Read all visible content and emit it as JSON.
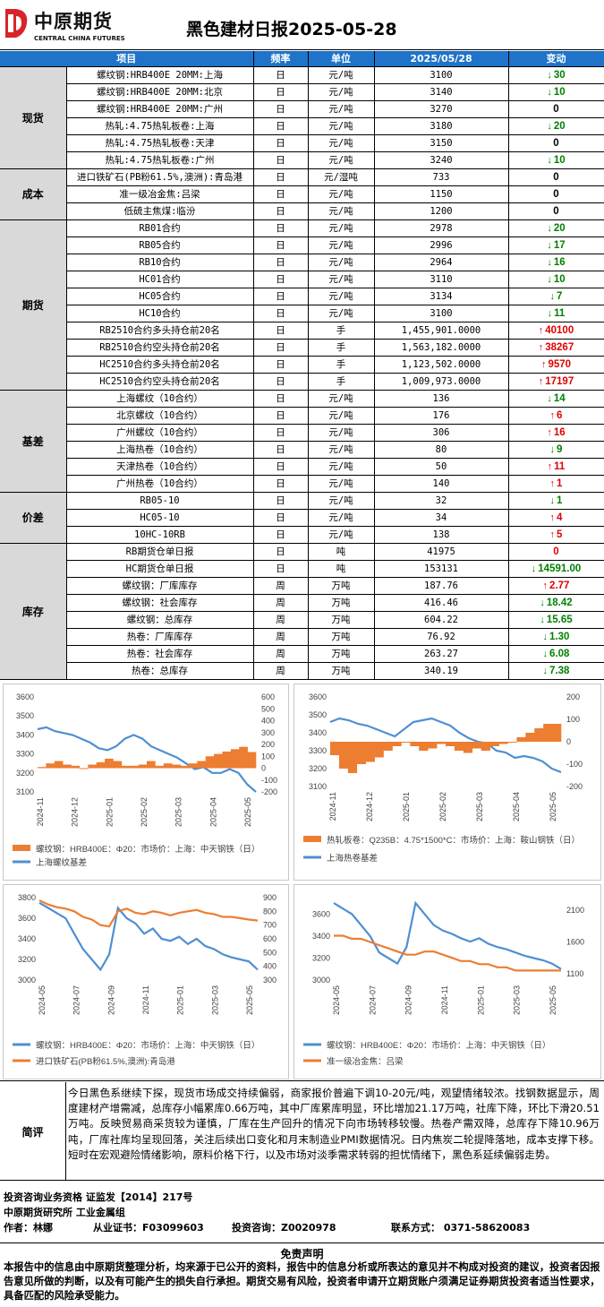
{
  "header": {
    "logo_cn": "中原期货",
    "logo_en": "CENTRAL CHINA FUTURES",
    "title": "黑色建材日报2025-05-28"
  },
  "columns": [
    "项目",
    "频率",
    "单位",
    "2025/05/28",
    "变动"
  ],
  "colors": {
    "header_bg": "#1f73c8",
    "cat_bg": "#d9d9d9",
    "up": "#e00000",
    "down": "#008000",
    "blue_line": "#4f8fd1",
    "orange": "#ed7d31"
  },
  "sections": [
    {
      "category": "现货",
      "rows": [
        {
          "item": "螺纹钢:HRB400E 20MM:上海",
          "freq": "日",
          "unit": "元/吨",
          "value": "3100",
          "dir": "down",
          "change": "30"
        },
        {
          "item": "螺纹钢:HRB400E 20MM:北京",
          "freq": "日",
          "unit": "元/吨",
          "value": "3140",
          "dir": "down",
          "change": "10"
        },
        {
          "item": "螺纹钢:HRB400E 20MM:广州",
          "freq": "日",
          "unit": "元/吨",
          "value": "3270",
          "dir": "none",
          "change": "0"
        },
        {
          "item": "热轧:4.75热轧板卷:上海",
          "freq": "日",
          "unit": "元/吨",
          "value": "3180",
          "dir": "down",
          "change": "20"
        },
        {
          "item": "热轧:4.75热轧板卷:天津",
          "freq": "日",
          "unit": "元/吨",
          "value": "3150",
          "dir": "none",
          "change": "0"
        },
        {
          "item": "热轧:4.75热轧板卷:广州",
          "freq": "日",
          "unit": "元/吨",
          "value": "3240",
          "dir": "down",
          "change": "10"
        }
      ]
    },
    {
      "category": "成本",
      "rows": [
        {
          "item": "进口铁矿石(PB粉61.5%,澳洲):青岛港",
          "freq": "日",
          "unit": "元/湿吨",
          "value": "733",
          "dir": "none",
          "change": "0"
        },
        {
          "item": "准一级冶金焦:吕梁",
          "freq": "日",
          "unit": "元/吨",
          "value": "1150",
          "dir": "none",
          "change": "0"
        },
        {
          "item": "低硫主焦煤:临汾",
          "freq": "日",
          "unit": "元/吨",
          "value": "1200",
          "dir": "none",
          "change": "0"
        }
      ]
    },
    {
      "category": "期货",
      "rows": [
        {
          "item": "RB01合约",
          "freq": "日",
          "unit": "元/吨",
          "value": "2978",
          "dir": "down",
          "change": "20"
        },
        {
          "item": "RB05合约",
          "freq": "日",
          "unit": "元/吨",
          "value": "2996",
          "dir": "down",
          "change": "17"
        },
        {
          "item": "RB10合约",
          "freq": "日",
          "unit": "元/吨",
          "value": "2964",
          "dir": "down",
          "change": "16"
        },
        {
          "item": "HC01合约",
          "freq": "日",
          "unit": "元/吨",
          "value": "3110",
          "dir": "down",
          "change": "10"
        },
        {
          "item": "HC05合约",
          "freq": "日",
          "unit": "元/吨",
          "value": "3134",
          "dir": "down",
          "change": "7"
        },
        {
          "item": "HC10合约",
          "freq": "日",
          "unit": "元/吨",
          "value": "3100",
          "dir": "down",
          "change": "11"
        },
        {
          "item": "RB2510合约多头持仓前20名",
          "freq": "日",
          "unit": "手",
          "value": "1,455,901.0000",
          "dir": "up",
          "change": "40100"
        },
        {
          "item": "RB2510合约空头持仓前20名",
          "freq": "日",
          "unit": "手",
          "value": "1,563,182.0000",
          "dir": "up",
          "change": "38267"
        },
        {
          "item": "HC2510合约多头持仓前20名",
          "freq": "日",
          "unit": "手",
          "value": "1,123,502.0000",
          "dir": "up",
          "change": "9570"
        },
        {
          "item": "HC2510合约空头持仓前20名",
          "freq": "日",
          "unit": "手",
          "value": "1,009,973.0000",
          "dir": "up",
          "change": "17197"
        }
      ]
    },
    {
      "category": "基差",
      "rows": [
        {
          "item": "上海螺纹（10合约）",
          "freq": "日",
          "unit": "元/吨",
          "value": "136",
          "dir": "down",
          "change": "14"
        },
        {
          "item": "北京螺纹（10合约）",
          "freq": "日",
          "unit": "元/吨",
          "value": "176",
          "dir": "up",
          "change": "6"
        },
        {
          "item": "广州螺纹（10合约）",
          "freq": "日",
          "unit": "元/吨",
          "value": "306",
          "dir": "up",
          "change": "16"
        },
        {
          "item": "上海热卷（10合约）",
          "freq": "日",
          "unit": "元/吨",
          "value": "80",
          "dir": "down",
          "change": "9"
        },
        {
          "item": "天津热卷（10合约）",
          "freq": "日",
          "unit": "元/吨",
          "value": "50",
          "dir": "up",
          "change": "11"
        },
        {
          "item": "广州热卷（10合约）",
          "freq": "日",
          "unit": "元/吨",
          "value": "140",
          "dir": "up",
          "change": "1"
        }
      ]
    },
    {
      "category": "价差",
      "rows": [
        {
          "item": "RB05-10",
          "freq": "日",
          "unit": "元/吨",
          "value": "32",
          "dir": "down",
          "change": "1"
        },
        {
          "item": "HC05-10",
          "freq": "日",
          "unit": "元/吨",
          "value": "34",
          "dir": "up",
          "change": "4"
        },
        {
          "item": "10HC-10RB",
          "freq": "日",
          "unit": "元/吨",
          "value": "138",
          "dir": "up",
          "change": "5"
        }
      ]
    },
    {
      "category": "库存",
      "rows": [
        {
          "item": "RB期货仓单日报",
          "freq": "日",
          "unit": "吨",
          "value": "41975",
          "dir": "none_red",
          "change": "0"
        },
        {
          "item": "HC期货仓单日报",
          "freq": "日",
          "unit": "吨",
          "value": "153131",
          "dir": "down",
          "change": "14591.00"
        },
        {
          "item": "螺纹钢：厂库库存",
          "freq": "周",
          "unit": "万吨",
          "value": "187.76",
          "dir": "up",
          "change": "2.77"
        },
        {
          "item": "螺纹钢：社会库存",
          "freq": "周",
          "unit": "万吨",
          "value": "416.46",
          "dir": "down",
          "change": "18.42"
        },
        {
          "item": "螺纹钢：总库存",
          "freq": "周",
          "unit": "万吨",
          "value": "604.22",
          "dir": "down",
          "change": "15.65"
        },
        {
          "item": "热卷：厂库库存",
          "freq": "周",
          "unit": "万吨",
          "value": "76.92",
          "dir": "down",
          "change": "1.30"
        },
        {
          "item": "热卷：社会库存",
          "freq": "周",
          "unit": "万吨",
          "value": "263.27",
          "dir": "down",
          "change": "6.08"
        },
        {
          "item": "热卷：总库存",
          "freq": "周",
          "unit": "万吨",
          "value": "340.19",
          "dir": "down",
          "change": "7.38"
        }
      ]
    }
  ],
  "chart_data": [
    {
      "type": "line",
      "left_ticks": [
        "3600",
        "3500",
        "3400",
        "3300",
        "3200",
        "3100"
      ],
      "right_ticks": [
        "600",
        "500",
        "400",
        "300",
        "200",
        "100",
        "0",
        "-100",
        "-200"
      ],
      "x_ticks": [
        "2024-11",
        "2024-12",
        "2025-01",
        "2025-02",
        "2025-03",
        "2025-04",
        "2025-05"
      ],
      "ylim": [
        3100,
        3600
      ],
      "y2lim": [
        -200,
        600
      ],
      "series": [
        {
          "name": "螺纹钢：HRB400E：Φ20：市场价：上海：中天钢铁（日）",
          "kind": "line",
          "axis": "left",
          "values": [
            3430,
            3440,
            3420,
            3410,
            3400,
            3380,
            3360,
            3330,
            3320,
            3340,
            3380,
            3400,
            3380,
            3340,
            3320,
            3300,
            3280,
            3250,
            3220,
            3230,
            3200,
            3200,
            3220,
            3200,
            3140,
            3100
          ]
        },
        {
          "name": "上海螺纹基差",
          "kind": "bar",
          "axis": "right",
          "values": [
            10,
            40,
            60,
            30,
            20,
            0,
            30,
            50,
            80,
            60,
            20,
            20,
            30,
            60,
            20,
            40,
            30,
            20,
            40,
            60,
            100,
            120,
            140,
            160,
            180,
            136
          ]
        }
      ]
    },
    {
      "type": "line",
      "left_ticks": [
        "3600",
        "3500",
        "3400",
        "3300",
        "3200",
        "3100"
      ],
      "right_ticks": [
        "200",
        "100",
        "0",
        "-100",
        "-200"
      ],
      "x_ticks": [
        "2024-11",
        "2024-12",
        "2025-01",
        "2025-02",
        "2025-03",
        "2025-04",
        "2025-05"
      ],
      "ylim": [
        3100,
        3600
      ],
      "y2lim": [
        -200,
        200
      ],
      "series": [
        {
          "name": "热轧板卷：Q235B：4.75*1500*C：市场价：上海：鞍山钢铁（日）",
          "kind": "line",
          "axis": "left",
          "values": [
            3460,
            3480,
            3470,
            3450,
            3440,
            3420,
            3400,
            3380,
            3420,
            3460,
            3470,
            3480,
            3460,
            3440,
            3400,
            3370,
            3350,
            3340,
            3300,
            3290,
            3260,
            3270,
            3260,
            3240,
            3200,
            3180
          ]
        },
        {
          "name": "上海热卷基差",
          "kind": "bar",
          "axis": "right",
          "values": [
            -60,
            -120,
            -140,
            -100,
            -90,
            -70,
            -40,
            -20,
            0,
            -20,
            -40,
            -30,
            -10,
            -20,
            -40,
            -50,
            -30,
            -40,
            -20,
            -10,
            0,
            20,
            40,
            60,
            80,
            80
          ]
        }
      ]
    },
    {
      "type": "line",
      "left_ticks": [
        "3800",
        "3600",
        "3400",
        "3200",
        "3000"
      ],
      "right_ticks": [
        "900",
        "800",
        "700",
        "600",
        "500",
        "400",
        "300"
      ],
      "x_ticks": [
        "2024-05",
        "2024-07",
        "2024-09",
        "2024-11",
        "2025-01",
        "2025-03",
        "2025-05"
      ],
      "ylim": [
        3000,
        3800
      ],
      "y2lim": [
        300,
        900
      ],
      "series": [
        {
          "name": "螺纹钢：HRB400E：Φ20：市场价：上海：中天钢铁（日）",
          "kind": "line",
          "axis": "left",
          "values": [
            3750,
            3700,
            3650,
            3600,
            3450,
            3300,
            3200,
            3100,
            3250,
            3700,
            3600,
            3550,
            3450,
            3500,
            3400,
            3380,
            3420,
            3350,
            3400,
            3330,
            3300,
            3250,
            3220,
            3200,
            3180,
            3100
          ]
        },
        {
          "name": "进口铁矿石(PB粉61.5%,澳洲):青岛港",
          "kind": "line",
          "axis": "right",
          "values": [
            880,
            850,
            830,
            820,
            800,
            760,
            740,
            700,
            690,
            800,
            820,
            790,
            780,
            800,
            790,
            770,
            790,
            800,
            810,
            790,
            780,
            760,
            760,
            750,
            740,
            733
          ]
        }
      ]
    },
    {
      "type": "line",
      "left_ticks": [
        "3600",
        "3400",
        "3200",
        "3000"
      ],
      "right_ticks": [
        "2100",
        "1600",
        "1100"
      ],
      "x_ticks": [
        "2024-05",
        "2024-07",
        "2024-09",
        "2024-11",
        "2025-01",
        "2025-03",
        "2025-05"
      ],
      "ylim": [
        3000,
        3750
      ],
      "y2lim": [
        1000,
        2300
      ],
      "series": [
        {
          "name": "螺纹钢：HRB400E：Φ20：市场价：上海：中天钢铁（日）",
          "kind": "line",
          "axis": "left",
          "values": [
            3700,
            3650,
            3600,
            3500,
            3400,
            3250,
            3200,
            3150,
            3300,
            3700,
            3600,
            3500,
            3450,
            3420,
            3380,
            3350,
            3380,
            3330,
            3300,
            3280,
            3250,
            3220,
            3200,
            3180,
            3150,
            3100
          ]
        },
        {
          "name": "准一级冶金焦：吕梁",
          "kind": "line",
          "axis": "right",
          "values": [
            1700,
            1700,
            1650,
            1650,
            1600,
            1550,
            1500,
            1450,
            1400,
            1400,
            1450,
            1450,
            1400,
            1350,
            1300,
            1300,
            1250,
            1250,
            1200,
            1200,
            1150,
            1150,
            1150,
            1150,
            1150,
            1150
          ]
        }
      ]
    }
  ],
  "comment": {
    "label": "简评",
    "text": "今日黑色系继续下探，现货市场成交持续偏弱，商家报价普遍下调10-20元/吨，观望情绪较浓。找钢数据显示，周度建材产增需减，总库存小幅累库0.66万吨，其中厂库累库明显，环比增加21.17万吨，社库下降，环比下滑20.51万吨。反映贸易商采货较为谨慎，厂库在生产回升的情况下向市场转移较慢。热卷产需双降，总库存下降10.96万吨，厂库社库均呈现回落，关注后续出口变化和月末制造业PMI数据情况。日内焦炭二轮提降落地，成本支撑下移。短时在宏观避险情绪影响，原料价格下行，以及市场对淡季需求转弱的担忧情绪下，黑色系延续偏弱走势。"
  },
  "info": {
    "line1": "投资咨询业务资格    证监发【2014】217号",
    "line2": "中原期货研究所    工业金属组",
    "author": "作者：林娜",
    "license": "从业证书：F03099603",
    "consult": "投资咨询：Z0020978",
    "contact": "联系方式：  0371-58620083"
  },
  "disclaimer": {
    "title": "免责声明",
    "text": "本报告中的信息由中原期货整理分析，均来源于已公开的资料，报告中的信息分析或所表达的意见并不构成对投资的建议，投资者因报告意见所做的判断，以及有可能产生的损失自行承担。期货交易有风险，投资者申请开立期货账户须满足证券期货投资者适当性要求，具备匹配的风险承受能力。"
  }
}
